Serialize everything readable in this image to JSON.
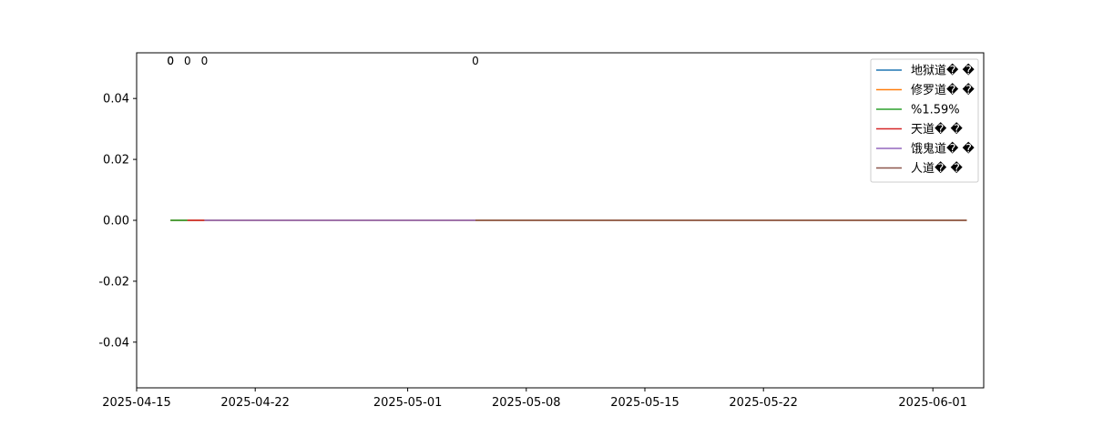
{
  "chart_data": {
    "type": "line",
    "title": "",
    "xlabel": "",
    "ylabel": "",
    "x_axis": {
      "type": "date",
      "range": [
        "2025-04-15",
        "2025-06-04"
      ],
      "ticks": [
        "2025-04-15",
        "2025-04-22",
        "2025-05-01",
        "2025-05-08",
        "2025-05-15",
        "2025-05-22",
        "2025-06-01"
      ]
    },
    "y_axis": {
      "range": [
        -0.055,
        0.055
      ],
      "ticks": [
        0.04,
        0.02,
        0.0,
        -0.02,
        -0.04
      ],
      "tick_labels": [
        "0.04",
        "0.02",
        "0.00",
        "-0.02",
        "-0.04"
      ]
    },
    "grid": false,
    "legend_position": "top-right",
    "series": [
      {
        "name": "地狱道� �",
        "color": "#1f77b4",
        "x": [
          "2025-04-17",
          "2025-06-03"
        ],
        "y": [
          0,
          0
        ]
      },
      {
        "name": "修罗道� �",
        "color": "#ff7f0e",
        "x": [
          "2025-04-17",
          "2025-06-03"
        ],
        "y": [
          0,
          0
        ]
      },
      {
        "name": "%1.59%",
        "color": "#2ca02c",
        "x": [
          "2025-04-17",
          "2025-04-18"
        ],
        "y": [
          0,
          0
        ]
      },
      {
        "name": "天道� �",
        "color": "#d62728",
        "x": [
          "2025-04-18",
          "2025-04-19"
        ],
        "y": [
          0,
          0
        ]
      },
      {
        "name": "饿鬼道� �",
        "color": "#9467bd",
        "x": [
          "2025-04-19",
          "2025-05-05"
        ],
        "y": [
          0,
          0
        ]
      },
      {
        "name": "人道� �",
        "color": "#8c564b",
        "x": [
          "2025-05-05",
          "2025-06-03"
        ],
        "y": [
          0,
          0
        ]
      }
    ],
    "annotations": [
      {
        "text": "0",
        "x": "2025-04-17"
      },
      {
        "text": "0",
        "x": "2025-04-17"
      },
      {
        "text": "0",
        "x": "2025-04-18"
      },
      {
        "text": "0",
        "x": "2025-04-19"
      },
      {
        "text": "0",
        "x": "2025-05-05"
      }
    ]
  }
}
